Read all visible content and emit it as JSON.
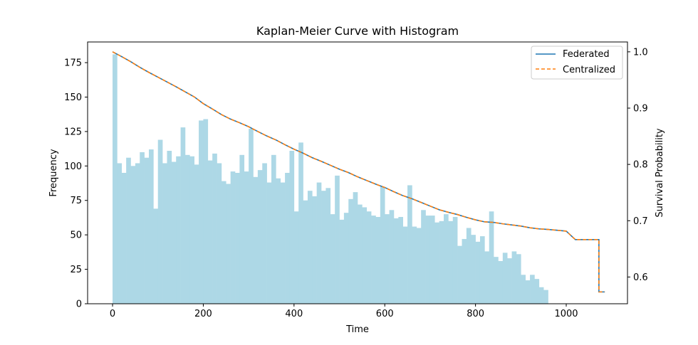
{
  "chart_data": {
    "type": "bar",
    "title": "Kaplan-Meier Curve with Histogram",
    "xlabel": "Time",
    "ylabel": "Frequency",
    "y2label": "Survival Probability",
    "xlim": [
      -55,
      1135
    ],
    "ylim": [
      0,
      190
    ],
    "y2lim": [
      0.5525,
      1.0175
    ],
    "xticks": [
      0,
      200,
      400,
      600,
      800,
      1000
    ],
    "yticks": [
      0,
      25,
      50,
      75,
      100,
      125,
      150,
      175
    ],
    "y2ticks": [
      0.6,
      0.7,
      0.8,
      0.9,
      1.0
    ],
    "histogram": {
      "bin_start": 0,
      "bin_width": 10,
      "color": "#add8e6",
      "counts": [
        181,
        102,
        95,
        106,
        100,
        102,
        110,
        106,
        112,
        69,
        119,
        102,
        111,
        103,
        107,
        128,
        108,
        107,
        101,
        133,
        134,
        104,
        109,
        102,
        89,
        87,
        96,
        95,
        108,
        96,
        127,
        92,
        97,
        102,
        88,
        108,
        91,
        88,
        95,
        111,
        67,
        117,
        75,
        82,
        78,
        88,
        82,
        84,
        65,
        93,
        61,
        66,
        76,
        81,
        72,
        70,
        67,
        64,
        63,
        85,
        65,
        68,
        62,
        63,
        56,
        86,
        56,
        55,
        68,
        64,
        64,
        59,
        60,
        65,
        60,
        63,
        42,
        47,
        55,
        50,
        45,
        49,
        38,
        67,
        34,
        31,
        37,
        33,
        38,
        36,
        21,
        17,
        21,
        18,
        12,
        10
      ]
    },
    "series": [
      {
        "name": "Federated",
        "color": "#1f77b4",
        "style": "solid",
        "x": [
          0,
          20,
          40,
          60,
          80,
          100,
          120,
          140,
          160,
          180,
          200,
          220,
          240,
          260,
          280,
          300,
          320,
          340,
          360,
          380,
          400,
          420,
          440,
          460,
          480,
          500,
          520,
          540,
          560,
          580,
          600,
          620,
          640,
          660,
          680,
          700,
          720,
          740,
          760,
          780,
          800,
          820,
          840,
          860,
          880,
          900,
          920,
          940,
          960,
          980,
          1000,
          1020,
          1040,
          1060,
          1072,
          1072,
          1085
        ],
        "y": [
          1.0,
          0.9915,
          0.9825,
          0.9725,
          0.9635,
          0.955,
          0.9465,
          0.938,
          0.929,
          0.92,
          0.908,
          0.8985,
          0.8885,
          0.8805,
          0.874,
          0.867,
          0.8585,
          0.8505,
          0.8435,
          0.835,
          0.827,
          0.82,
          0.812,
          0.8055,
          0.7985,
          0.7915,
          0.7855,
          0.778,
          0.7715,
          0.765,
          0.759,
          0.7515,
          0.7445,
          0.739,
          0.7325,
          0.726,
          0.7195,
          0.715,
          0.711,
          0.706,
          0.7015,
          0.698,
          0.697,
          0.6945,
          0.6925,
          0.6905,
          0.6875,
          0.6855,
          0.6845,
          0.683,
          0.6815,
          0.6665,
          0.6665,
          0.6665,
          0.6665,
          0.5735,
          0.5735
        ]
      },
      {
        "name": "Centralized",
        "color": "#ff7f0e",
        "style": "dashed",
        "x": [
          0,
          20,
          40,
          60,
          80,
          100,
          120,
          140,
          160,
          180,
          200,
          220,
          240,
          260,
          280,
          300,
          320,
          340,
          360,
          380,
          400,
          420,
          440,
          460,
          480,
          500,
          520,
          540,
          560,
          580,
          600,
          620,
          640,
          660,
          680,
          700,
          720,
          740,
          760,
          780,
          800,
          820,
          840,
          860,
          880,
          900,
          920,
          940,
          960,
          980,
          1000,
          1020,
          1040,
          1060,
          1072,
          1072,
          1085
        ],
        "y": [
          1.0,
          0.9915,
          0.9825,
          0.9725,
          0.9635,
          0.955,
          0.9465,
          0.938,
          0.929,
          0.92,
          0.908,
          0.8985,
          0.8885,
          0.8805,
          0.874,
          0.867,
          0.8585,
          0.8505,
          0.8435,
          0.835,
          0.827,
          0.82,
          0.812,
          0.8055,
          0.7985,
          0.7915,
          0.7855,
          0.778,
          0.7715,
          0.765,
          0.759,
          0.7515,
          0.7445,
          0.739,
          0.7325,
          0.726,
          0.7195,
          0.715,
          0.711,
          0.706,
          0.7015,
          0.698,
          0.697,
          0.6945,
          0.6925,
          0.6905,
          0.6875,
          0.6855,
          0.6845,
          0.683,
          0.6815,
          0.6665,
          0.6665,
          0.6665,
          0.6665,
          0.5735,
          0.5735
        ]
      }
    ],
    "legend_position": "top-right",
    "grid": false
  }
}
